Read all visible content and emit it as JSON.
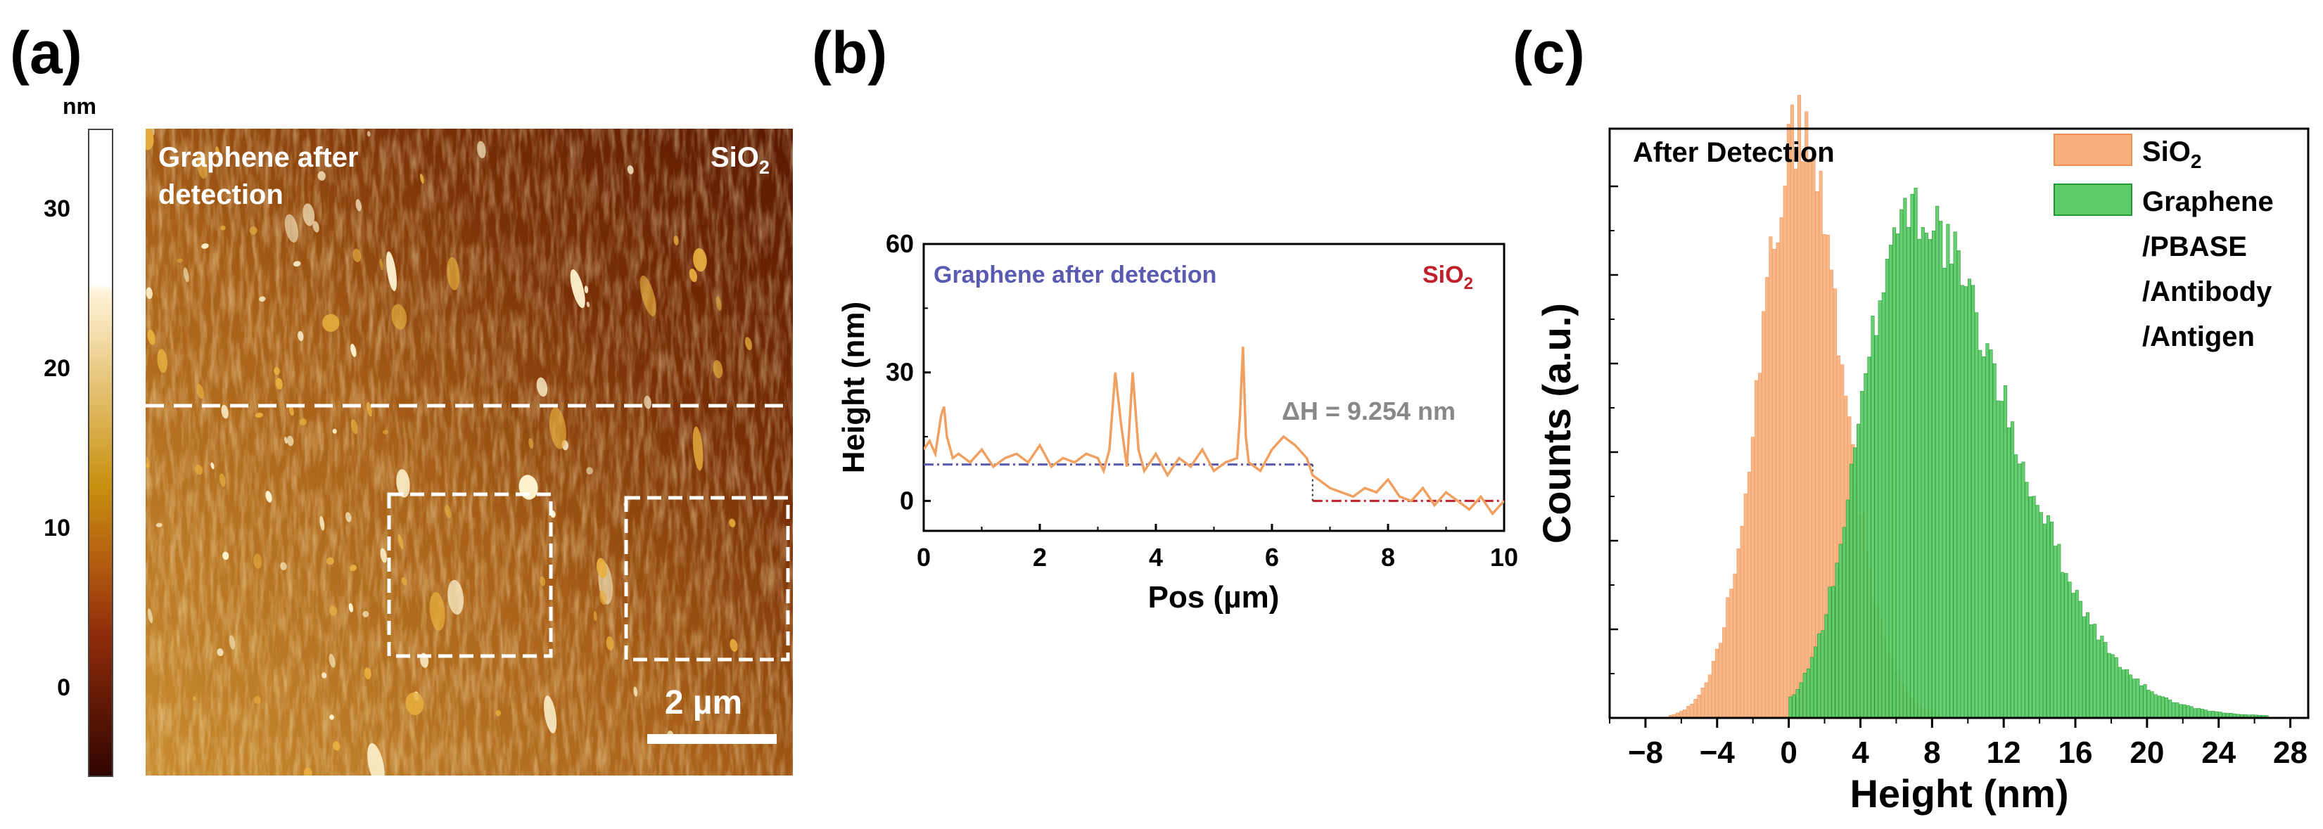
{
  "panel_labels": [
    "(a)",
    "(b)",
    "(c)"
  ],
  "afm_panel": {
    "colorbar_unit": "nm",
    "colorbar_ticks": [
      "30",
      "20",
      "10",
      "0"
    ],
    "label_graphene_line1": "Graphene after",
    "label_graphene_line2": "detection",
    "label_sio2_main": "SiO",
    "label_sio2_sub": "2",
    "scale_bar_label": "2 µm",
    "colors": {
      "dark": "#3d0a00",
      "mid": "#a05010",
      "bright": "#e8b040",
      "highlight": "#fff4d0",
      "overlay": "#ffffff"
    }
  },
  "chart_data": [
    {
      "type": "line",
      "xlabel": "Pos (µm)",
      "ylabel": "Height (nm)",
      "xlim": [
        0,
        10
      ],
      "ylim": [
        -7,
        60
      ],
      "xticks": [
        "0",
        "2",
        "4",
        "6",
        "8",
        "10"
      ],
      "yticks": [
        "0",
        "30",
        "60"
      ],
      "annotation_graphene": "Graphene after detection",
      "annotation_sio2_main": "SiO",
      "annotation_sio2_sub": "2",
      "annotation_delta": "ΔH = 9.254 nm",
      "reference_lines": [
        {
          "from_x": 0,
          "to_x": 6.7,
          "y": 8.5,
          "color": "#5a5ab0"
        },
        {
          "from_x": 6.7,
          "to_x": 10,
          "y": 0,
          "color": "#c0202a"
        }
      ],
      "series": [
        {
          "color": "#f0a060",
          "x": [
            0,
            0.1,
            0.2,
            0.3,
            0.35,
            0.4,
            0.5,
            0.6,
            0.8,
            1.0,
            1.2,
            1.4,
            1.6,
            1.8,
            2.0,
            2.2,
            2.4,
            2.6,
            2.8,
            3.0,
            3.1,
            3.2,
            3.3,
            3.4,
            3.5,
            3.6,
            3.7,
            3.8,
            3.9,
            4.0,
            4.2,
            4.4,
            4.6,
            4.8,
            5.0,
            5.2,
            5.4,
            5.45,
            5.5,
            5.55,
            5.6,
            5.8,
            6.0,
            6.2,
            6.4,
            6.6,
            6.7,
            6.8,
            7.0,
            7.2,
            7.4,
            7.6,
            7.8,
            8.0,
            8.2,
            8.4,
            8.6,
            8.8,
            9.0,
            9.2,
            9.4,
            9.6,
            9.8,
            10.0
          ],
          "y": [
            12,
            14,
            11,
            20,
            22,
            15,
            10,
            11,
            9,
            12,
            8,
            10,
            11,
            9,
            13,
            8,
            10,
            9,
            11,
            10,
            7,
            12,
            30,
            18,
            8,
            30,
            12,
            7,
            9,
            11,
            6,
            10,
            8,
            12,
            7,
            9,
            10,
            20,
            36,
            15,
            9,
            7,
            12,
            15,
            13,
            10,
            6,
            5,
            3,
            2,
            1,
            3,
            2,
            5,
            1,
            0,
            3,
            -1,
            2,
            0,
            -2,
            1,
            -3,
            0
          ]
        }
      ]
    },
    {
      "type": "bar",
      "xlabel": "Height (nm)",
      "ylabel": "Counts (a.u.)",
      "title": "After Detection",
      "xlim": [
        -10,
        29
      ],
      "xticks": [
        "−8",
        "−4",
        "0",
        "4",
        "8",
        "12",
        "16",
        "20",
        "24",
        "28"
      ],
      "bin_width": 0.2,
      "legend_position": "top-right",
      "series": [
        {
          "name_main": "SiO",
          "name_sub": "2",
          "color": "#f7b07c",
          "edge": "#f09050",
          "peak_x": 0.6,
          "peak_value": 1.0,
          "sigma_left": 2.2,
          "sigma_right": 2.4,
          "range": [
            -7.5,
            10
          ]
        },
        {
          "name_lines": [
            "Graphene",
            "/PBASE",
            "/Antibody",
            "/Antigen"
          ],
          "color": "#5ecc6a",
          "edge": "#1f9a2e",
          "peak_x": 6.7,
          "peak_value": 0.87,
          "sigma_left": 2.6,
          "sigma_right": 5.4,
          "range": [
            0,
            28.5
          ]
        }
      ]
    }
  ]
}
